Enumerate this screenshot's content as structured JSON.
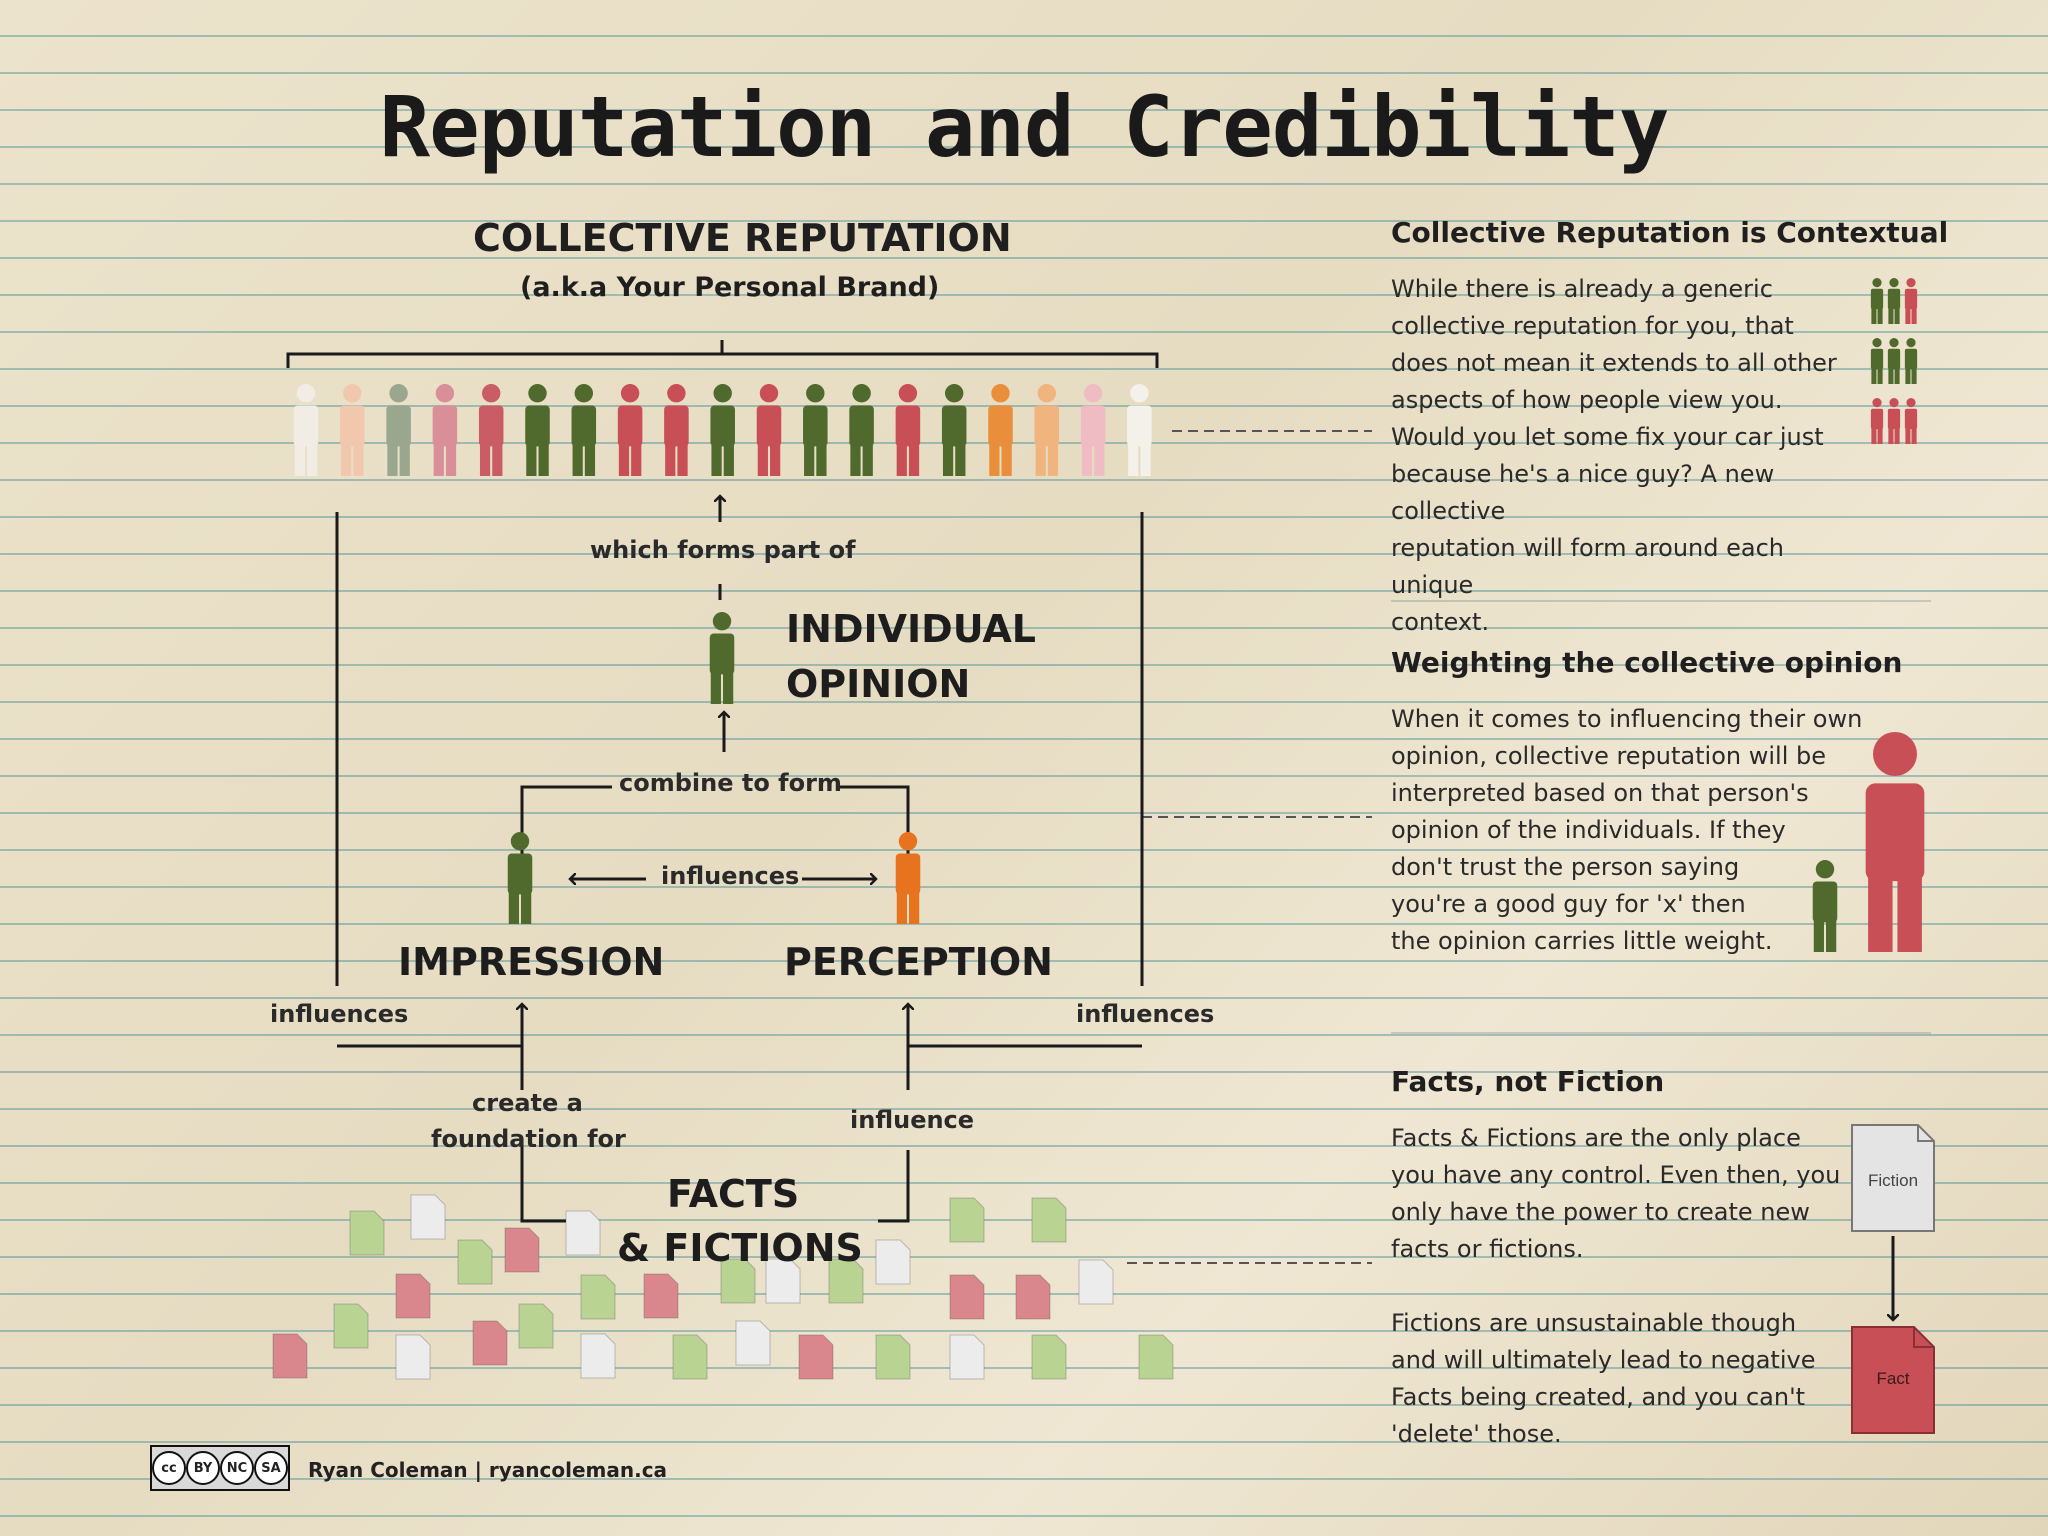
{
  "title": "Reputation and Credibility",
  "diagram": {
    "collective_heading": "COLLECTIVE REPUTATION",
    "collective_subheading": "(a.k.a Your Personal Brand)",
    "which_forms_part_of": "which forms part of",
    "individual_opinion_line1": "INDIVIDUAL",
    "individual_opinion_line2": "OPINION",
    "combine_to_form": "combine to form",
    "influences_center": "influences",
    "impression": "IMPRESSION",
    "perception": "PERCEPTION",
    "influences_left": "influences",
    "influences_right": "influences",
    "create_foundation_line1": "create a",
    "create_foundation_line2": "foundation for",
    "influence": "influence",
    "facts_line1": "FACTS",
    "facts_line2": "& FICTIONS",
    "crowd_colors": [
      "#f2ede4",
      "#f1c7ad",
      "#9aa78f",
      "#d98f98",
      "#c95c64",
      "#4f6a2c",
      "#4f6a2c",
      "#c84f55",
      "#c84f55",
      "#4f6a2c",
      "#c84f55",
      "#4f6a2c",
      "#4f6a2c",
      "#c84f55",
      "#4f6a2c",
      "#e98f3c",
      "#f0b47e",
      "#eebcc2",
      "#f4f1ea"
    ],
    "colors": {
      "green": "#4f6a2c",
      "red": "#c84f55",
      "orange": "#e8731f",
      "doc_green": "#b9d392",
      "doc_red": "#d9868c",
      "doc_white": "#ececec"
    }
  },
  "panels": {
    "contextual": {
      "title": "Collective Reputation is Contextual",
      "lines": [
        "While there is already a generic",
        "collective reputation for you, that",
        "does not mean it extends to all other",
        "aspects of how people view you.",
        "Would you let some fix your car just",
        "because he's a nice guy? A new collective",
        "reputation will form around each unique",
        "context."
      ]
    },
    "weighting": {
      "title": "Weighting the collective opinion",
      "lines": [
        "When it comes to influencing their own",
        "opinion, collective reputation will be",
        "interpreted based on that person's",
        "opinion of the individuals. If they",
        "don't trust the person saying",
        "you're a good guy for 'x' then",
        "the opinion carries little weight."
      ]
    },
    "facts": {
      "title": "Facts, not Fiction",
      "lines1": [
        "Facts & Fictions are the only place",
        "you have any control. Even then, you",
        "only have the power to create new",
        "facts or fictions."
      ],
      "lines2": [
        "Fictions are unsustainable though",
        "and will ultimately lead to negative",
        "Facts being created, and you can't",
        "'delete' those."
      ],
      "fiction_label": "Fiction",
      "fact_label": "Fact"
    }
  },
  "footer": {
    "credit": "Ryan Coleman | ryancoleman.ca",
    "cc_labels": [
      "cc",
      "BY",
      "NC",
      "SA"
    ]
  }
}
